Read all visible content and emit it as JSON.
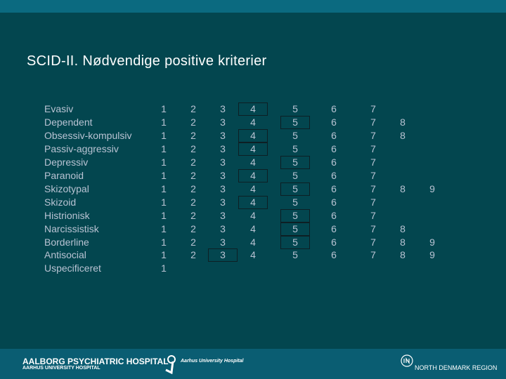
{
  "header": {
    "title": "SCID-II. Nødvendige positive kriterier"
  },
  "table": {
    "rows": [
      {
        "label": "Evasiv",
        "values": [
          1,
          2,
          3,
          4,
          5,
          6,
          7
        ],
        "boxed": 4
      },
      {
        "label": "Dependent",
        "values": [
          1,
          2,
          3,
          4,
          5,
          6,
          7,
          8
        ],
        "boxed": 5
      },
      {
        "label": "Obsessiv-kompulsiv",
        "values": [
          1,
          2,
          3,
          4,
          5,
          6,
          7,
          8
        ],
        "boxed": 4
      },
      {
        "label": "Passiv-aggressiv",
        "values": [
          1,
          2,
          3,
          4,
          5,
          6,
          7
        ],
        "boxed": 4
      },
      {
        "label": "Depressiv",
        "values": [
          1,
          2,
          3,
          4,
          5,
          6,
          7
        ],
        "boxed": 5
      },
      {
        "label": "Paranoid",
        "values": [
          1,
          2,
          3,
          4,
          5,
          6,
          7
        ],
        "boxed": 4
      },
      {
        "label": "Skizotypal",
        "values": [
          1,
          2,
          3,
          4,
          5,
          6,
          7,
          8,
          9
        ],
        "boxed": 5
      },
      {
        "label": "Skizoid",
        "values": [
          1,
          2,
          3,
          4,
          5,
          6,
          7
        ],
        "boxed": 4
      },
      {
        "label": "Histrionisk",
        "values": [
          1,
          2,
          3,
          4,
          5,
          6,
          7
        ],
        "boxed": 5
      },
      {
        "label": "Narcissistisk",
        "values": [
          1,
          2,
          3,
          4,
          5,
          6,
          7,
          8
        ],
        "boxed": 5
      },
      {
        "label": "Borderline",
        "values": [
          1,
          2,
          3,
          4,
          5,
          6,
          7,
          8,
          9
        ],
        "boxed": 5
      },
      {
        "label": "Antisocial",
        "values": [
          1,
          2,
          3,
          4,
          5,
          6,
          7,
          8,
          9
        ],
        "boxed": 3
      },
      {
        "label": "Uspecificeret",
        "values": [
          1
        ]
      }
    ]
  },
  "footer": {
    "left_title": "AALBORG PSYCHIATRIC HOSPITAL",
    "left_subtitle": "AARHUS UNIVERSITY HOSPITAL",
    "center": "Aarhus University Hospital",
    "right": "NORTH DENMARK REGION"
  }
}
